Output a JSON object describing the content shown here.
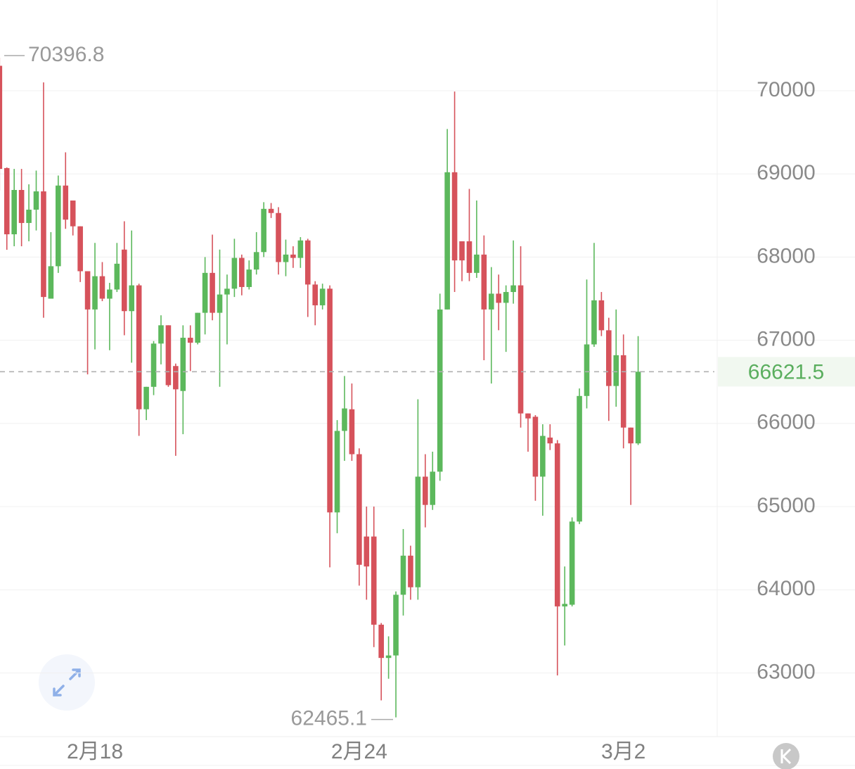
{
  "chart_data": {
    "type": "candlestick",
    "categories": [
      null,
      null,
      null,
      null,
      null,
      null,
      null,
      null,
      null,
      null,
      null,
      null,
      null,
      "2月18",
      null,
      null,
      null,
      null,
      null,
      null,
      null,
      null,
      null,
      null,
      null,
      null,
      null,
      null,
      null,
      null,
      null,
      null,
      null,
      null,
      null,
      null,
      null,
      null,
      null,
      null,
      null,
      null,
      null,
      null,
      null,
      null,
      null,
      null,
      null,
      "2月24",
      null,
      null,
      null,
      null,
      null,
      null,
      null,
      null,
      null,
      null,
      null,
      null,
      null,
      null,
      null,
      null,
      null,
      null,
      null,
      null,
      null,
      null,
      null,
      null,
      null,
      null,
      null,
      null,
      null,
      null,
      null,
      null,
      null,
      null,
      null,
      "3月2",
      null,
      null
    ],
    "series": {
      "open": [
        70300,
        69070,
        68274,
        68807,
        68410,
        68570,
        68790,
        67500,
        67890,
        68860,
        68680,
        68370,
        67830,
        67370,
        67770,
        67500,
        67610,
        68090,
        67350,
        67660,
        66170,
        66440,
        66960,
        67180,
        66690,
        66390,
        67030,
        66970,
        67330,
        67810,
        67330,
        67550,
        67620,
        67990,
        67640,
        67850,
        68060,
        68580,
        68530,
        67940,
        68030,
        67990,
        68200,
        67670,
        67420,
        67620,
        64930,
        65910,
        66170,
        65630,
        64640,
        64640,
        63580,
        63180,
        63210,
        63940,
        64410,
        64030,
        65360,
        65020,
        65420,
        67370,
        69020,
        68190,
        68190,
        67810,
        68030,
        67370,
        67560,
        67450,
        67580,
        67660,
        66120,
        66080,
        65360,
        65830,
        65760,
        63800,
        63820,
        64820,
        66330,
        66950,
        67480,
        67120,
        66450,
        66820,
        65950,
        65760
      ],
      "high": [
        70396.8,
        69078,
        69060,
        69060,
        68875,
        69040,
        70100,
        68300,
        68980,
        69260,
        68680,
        68370,
        67830,
        68170,
        67940,
        67690,
        68170,
        68430,
        68320,
        67680,
        66440,
        66990,
        67300,
        67180,
        66720,
        67180,
        67180,
        67330,
        68000,
        68270,
        68090,
        67790,
        68220,
        68030,
        67960,
        68300,
        68660,
        68650,
        68600,
        68210,
        68130,
        68240,
        68220,
        67710,
        67680,
        67660,
        66040,
        66570,
        66480,
        65700,
        65000,
        65000,
        63600,
        63440,
        63980,
        64730,
        64530,
        66290,
        65630,
        65660,
        67560,
        69540,
        69990,
        68190,
        68820,
        68680,
        68260,
        67880,
        67790,
        67660,
        68200,
        68130,
        66120,
        66100,
        65990,
        65990,
        65800,
        64280,
        64870,
        66420,
        67730,
        68170,
        67580,
        67270,
        67370,
        67070,
        65950,
        67050
      ],
      "low": [
        68800,
        68088,
        68130,
        68130,
        68190,
        68320,
        67270,
        67500,
        67810,
        68340,
        68260,
        67700,
        66590,
        66890,
        67470,
        66880,
        67580,
        67060,
        66730,
        65850,
        66040,
        66340,
        66710,
        66440,
        65610,
        65870,
        66630,
        66950,
        67070,
        67240,
        66440,
        66950,
        67520,
        67540,
        67610,
        67790,
        68000,
        68470,
        67790,
        67770,
        67870,
        67870,
        67280,
        67180,
        67370,
        64270,
        64680,
        65550,
        65550,
        64050,
        63880,
        63310,
        62670,
        62930,
        62465.1,
        63690,
        63880,
        63880,
        64750,
        64960,
        65310,
        67370,
        67580,
        67710,
        67710,
        67750,
        66760,
        66480,
        67120,
        66860,
        67440,
        65950,
        65660,
        65070,
        64890,
        65680,
        62970,
        63330,
        63800,
        64790,
        66180,
        66920,
        67050,
        66030,
        66200,
        65700,
        65020,
        65740
      ],
      "close": [
        69060,
        68274,
        68807,
        68410,
        68570,
        68790,
        67520,
        67890,
        68860,
        68450,
        68370,
        67830,
        67370,
        67770,
        67500,
        67610,
        67920,
        67350,
        67660,
        66170,
        66440,
        66960,
        67180,
        66460,
        66410,
        67030,
        66970,
        67330,
        67810,
        67330,
        67550,
        67620,
        67990,
        67640,
        67850,
        68060,
        68580,
        68530,
        67940,
        68030,
        67990,
        68200,
        67670,
        67420,
        67620,
        64930,
        65910,
        66180,
        65630,
        64300,
        64280,
        63580,
        63180,
        63210,
        63940,
        64410,
        64030,
        65360,
        65020,
        65420,
        67370,
        69020,
        67960,
        67960,
        67810,
        68030,
        67370,
        67560,
        67450,
        67580,
        67660,
        66120,
        66060,
        65360,
        65850,
        65760,
        63800,
        63830,
        64820,
        66330,
        66950,
        67480,
        67120,
        66450,
        66820,
        65950,
        65760,
        66621.5
      ]
    },
    "colors": {
      "up": "#5cb85c",
      "down": "#d6525b"
    },
    "ylim": [
      62234,
      71091
    ],
    "yticks": [
      63000,
      64000,
      65000,
      66000,
      67000,
      68000,
      69000,
      70000
    ],
    "grid": true,
    "last_price": 66621.5,
    "max_label": 70396.8,
    "min_label": 62465.1
  }
}
